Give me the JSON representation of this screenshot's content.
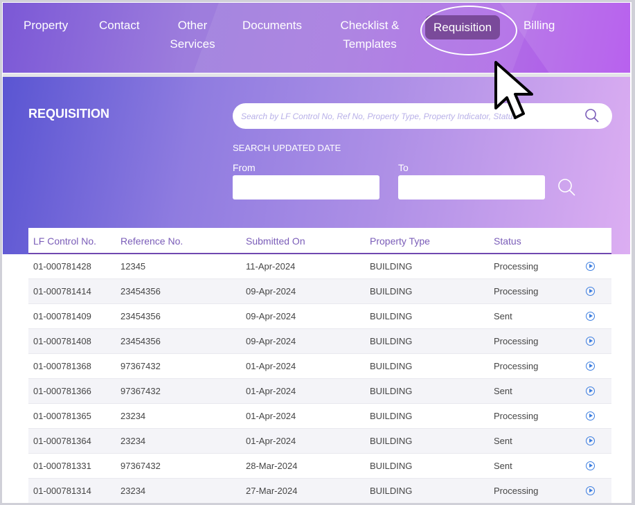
{
  "nav": {
    "items": [
      {
        "label": "Property"
      },
      {
        "label": "Contact"
      },
      {
        "label": "Other Services"
      },
      {
        "label": "Documents"
      },
      {
        "label": "Checklist & Templates"
      },
      {
        "label": "Requisition",
        "active": true
      },
      {
        "label": "Billing"
      }
    ]
  },
  "page": {
    "title": "REQUISITION",
    "search_placeholder": "Search by LF Control No, Ref No, Property Type, Property Indicator, Status",
    "date_section": "SEARCH UPDATED DATE",
    "from_label": "From",
    "to_label": "To",
    "from_value": "",
    "to_value": ""
  },
  "table": {
    "headers": [
      "LF Control No.",
      "Reference No.",
      "Submitted On",
      "Property Type",
      "Status"
    ],
    "rows": [
      [
        "01-000781428",
        "12345",
        "11-Apr-2024",
        "BUILDING",
        "Processing"
      ],
      [
        "01-000781414",
        "23454356",
        "09-Apr-2024",
        "BUILDING",
        "Processing"
      ],
      [
        "01-000781409",
        "23454356",
        "09-Apr-2024",
        "BUILDING",
        "Sent"
      ],
      [
        "01-000781408",
        "23454356",
        "09-Apr-2024",
        "BUILDING",
        "Processing"
      ],
      [
        "01-000781368",
        "97367432",
        "01-Apr-2024",
        "BUILDING",
        "Processing"
      ],
      [
        "01-000781366",
        "97367432",
        "01-Apr-2024",
        "BUILDING",
        "Sent"
      ],
      [
        "01-000781365",
        "23234",
        "01-Apr-2024",
        "BUILDING",
        "Processing"
      ],
      [
        "01-000781364",
        "23234",
        "01-Apr-2024",
        "BUILDING",
        "Sent"
      ],
      [
        "01-000781331",
        "97367432",
        "28-Mar-2024",
        "BUILDING",
        "Sent"
      ],
      [
        "01-000781314",
        "23234",
        "27-Mar-2024",
        "BUILDING",
        "Processing"
      ]
    ]
  },
  "colors": {
    "accent": "#7a4a9a",
    "header_text": "#7a5cb8",
    "action_icon": "#3b7de0"
  },
  "icons": {
    "search": "search-icon",
    "row_action": "play-circle-icon",
    "pointer": "mouse-pointer-icon"
  }
}
